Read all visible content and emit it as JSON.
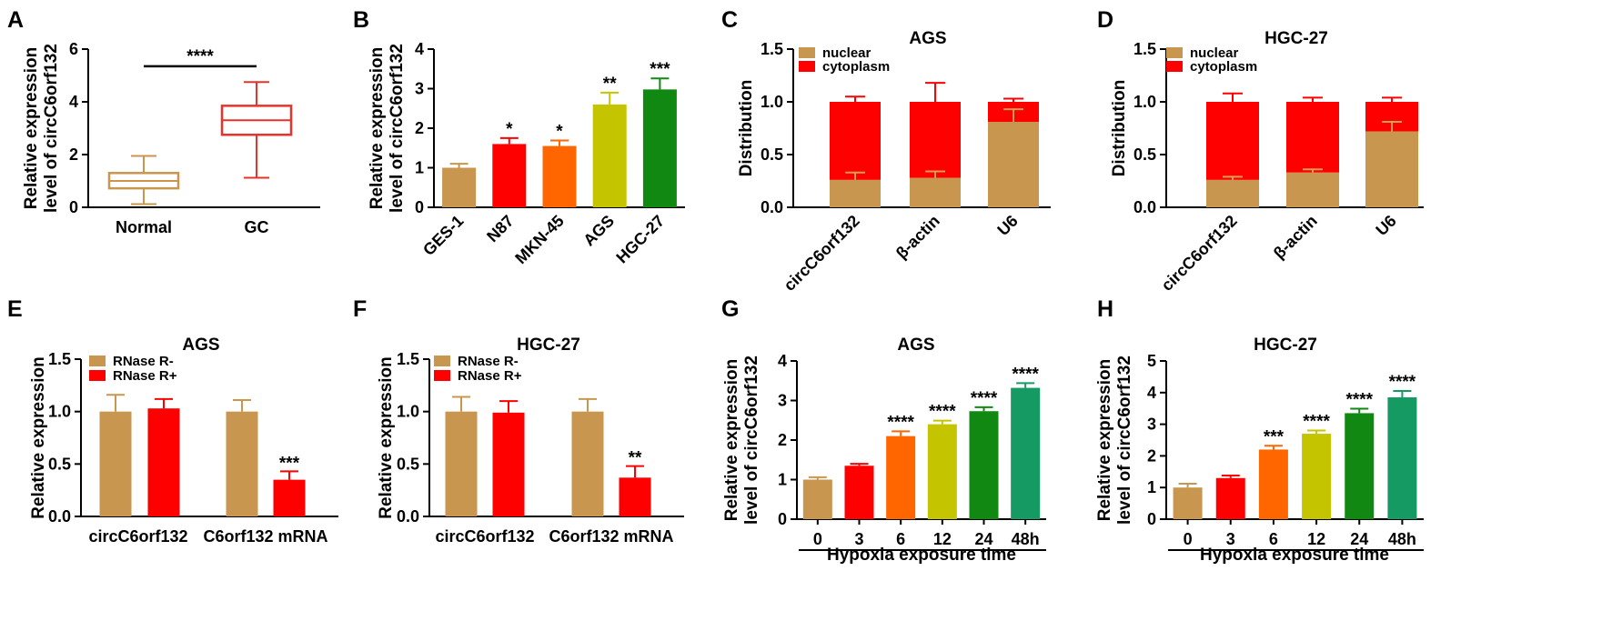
{
  "colors": {
    "tan": "#c8964f",
    "red": "#ff0000",
    "orange": "#ff6600",
    "olive": "#c4c400",
    "green": "#118811",
    "teal": "#159a63",
    "box_normal": "#c8964f",
    "box_gc": "#e8332a"
  },
  "chart_data": [
    {
      "panel": "A",
      "type": "box",
      "title": "",
      "ylabel": [
        "Relative expression",
        "level of circC6orf132"
      ],
      "ylim": [
        0,
        6
      ],
      "yticks": [
        0,
        2,
        4,
        6
      ],
      "ytick_labels": [
        "0",
        "2",
        "4",
        "6"
      ],
      "categories": [
        "Normal",
        "GC"
      ],
      "boxes": [
        {
          "name": "Normal",
          "min": 0.12,
          "q1": 0.72,
          "median": 1.0,
          "q3": 1.3,
          "max": 1.95,
          "color": "#c8964f"
        },
        {
          "name": "GC",
          "min": 1.12,
          "q1": 2.75,
          "median": 3.3,
          "q3": 3.85,
          "max": 4.75,
          "color": "#e8332a"
        }
      ],
      "bracket": {
        "label": "****",
        "value": 5.35
      }
    },
    {
      "panel": "B",
      "type": "bar",
      "title": "",
      "ylabel": [
        "Relative expression",
        "level of circC6orf132"
      ],
      "ylim": [
        0,
        4
      ],
      "yticks": [
        0,
        1,
        2,
        3,
        4
      ],
      "ytick_labels": [
        "0",
        "1",
        "2",
        "3",
        "4"
      ],
      "categories": [
        "GES-1",
        "N87",
        "MKN-45",
        "AGS",
        "HGC-27"
      ],
      "rotate_cats": true,
      "values": [
        1.0,
        1.6,
        1.55,
        2.6,
        2.98
      ],
      "errors": [
        0.1,
        0.15,
        0.14,
        0.3,
        0.28
      ],
      "colors": [
        "#c8964f",
        "#ff0000",
        "#ff6600",
        "#c4c400",
        "#118811"
      ],
      "sig": [
        "",
        "*",
        "*",
        "**",
        "***"
      ]
    },
    {
      "panel": "C",
      "type": "stacked_bar",
      "title": "AGS",
      "ylabel": [
        "Distribution"
      ],
      "ylim": [
        0,
        1.5
      ],
      "yticks": [
        0,
        0.5,
        1.0,
        1.5
      ],
      "ytick_labels": [
        "0.0",
        "0.5",
        "1.0",
        "1.5"
      ],
      "categories": [
        "circC6orf132",
        "β-actin",
        "U6"
      ],
      "rotate_cats": true,
      "series": [
        {
          "name": "nuclear",
          "values": [
            0.26,
            0.28,
            0.81
          ],
          "errors": [
            0.07,
            0.06,
            0.12
          ],
          "color": "#c8964f"
        },
        {
          "name": "cytoplasm",
          "values": [
            0.74,
            0.72,
            0.19
          ],
          "errors": [
            0.05,
            0.18,
            0.03
          ],
          "color": "#ff0000"
        }
      ]
    },
    {
      "panel": "D",
      "type": "stacked_bar",
      "title": "HGC-27",
      "ylabel": [
        "Distribution"
      ],
      "ylim": [
        0,
        1.5
      ],
      "yticks": [
        0,
        0.5,
        1.0,
        1.5
      ],
      "ytick_labels": [
        "0.0",
        "0.5",
        "1.0",
        "1.5"
      ],
      "categories": [
        "circC6orf132",
        "β-actin",
        "U6"
      ],
      "rotate_cats": true,
      "series": [
        {
          "name": "nuclear",
          "values": [
            0.26,
            0.33,
            0.72
          ],
          "errors": [
            0.03,
            0.03,
            0.09
          ],
          "color": "#c8964f"
        },
        {
          "name": "cytoplasm",
          "values": [
            0.74,
            0.67,
            0.28
          ],
          "errors": [
            0.08,
            0.04,
            0.04
          ],
          "color": "#ff0000"
        }
      ]
    },
    {
      "panel": "E",
      "type": "grouped_bar",
      "title": "AGS",
      "ylabel": [
        "Relative expression"
      ],
      "ylim": [
        0,
        1.5
      ],
      "yticks": [
        0,
        0.5,
        1.0,
        1.5
      ],
      "ytick_labels": [
        "0.0",
        "0.5",
        "1.0",
        "1.5"
      ],
      "categories": [
        "circC6orf132",
        "C6orf132 mRNA"
      ],
      "series": [
        {
          "name": "RNase R-",
          "values": [
            1.0,
            1.0
          ],
          "errors": [
            0.16,
            0.11
          ],
          "color": "#c8964f"
        },
        {
          "name": "RNase R+",
          "values": [
            1.03,
            0.35
          ],
          "errors": [
            0.09,
            0.08
          ],
          "color": "#ff0000"
        }
      ],
      "sig": [
        [
          "",
          ""
        ],
        [
          "",
          "***"
        ]
      ]
    },
    {
      "panel": "F",
      "type": "grouped_bar",
      "title": "HGC-27",
      "ylabel": [
        "Relative expression"
      ],
      "ylim": [
        0,
        1.5
      ],
      "yticks": [
        0,
        0.5,
        1.0,
        1.5
      ],
      "ytick_labels": [
        "0.0",
        "0.5",
        "1.0",
        "1.5"
      ],
      "categories": [
        "circC6orf132",
        "C6orf132 mRNA"
      ],
      "series": [
        {
          "name": "RNase R-",
          "values": [
            1.0,
            1.0
          ],
          "errors": [
            0.14,
            0.12
          ],
          "color": "#c8964f"
        },
        {
          "name": "RNase R+",
          "values": [
            0.99,
            0.37
          ],
          "errors": [
            0.11,
            0.11
          ],
          "color": "#ff0000"
        }
      ],
      "sig": [
        [
          "",
          ""
        ],
        [
          "",
          "**"
        ]
      ]
    },
    {
      "panel": "G",
      "type": "bar",
      "title": "AGS",
      "ylabel": [
        "Relative expression",
        "level of circC6orf132"
      ],
      "ylim": [
        0,
        4
      ],
      "yticks": [
        0,
        1,
        2,
        3,
        4
      ],
      "ytick_labels": [
        "0",
        "1",
        "2",
        "3",
        "4"
      ],
      "categories": [
        "0",
        "3",
        "6",
        "12",
        "24",
        "48h"
      ],
      "xlabel": "Hypoxia exposure time",
      "values": [
        1.0,
        1.35,
        2.1,
        2.4,
        2.73,
        3.32
      ],
      "errors": [
        0.06,
        0.05,
        0.12,
        0.09,
        0.1,
        0.12
      ],
      "colors": [
        "#c8964f",
        "#ff0000",
        "#ff6600",
        "#c4c400",
        "#118811",
        "#159a63"
      ],
      "sig": [
        "",
        "",
        "****",
        "****",
        "****",
        "****"
      ]
    },
    {
      "panel": "H",
      "type": "bar",
      "title": "HGC-27",
      "ylabel": [
        "Relative expression",
        "level of circC6orf132"
      ],
      "ylim": [
        0,
        5
      ],
      "yticks": [
        0,
        1,
        2,
        3,
        4,
        5
      ],
      "ytick_labels": [
        "0",
        "1",
        "2",
        "3",
        "4",
        "5"
      ],
      "categories": [
        "0",
        "3",
        "6",
        "12",
        "24",
        "48h"
      ],
      "xlabel": "Hypoxia exposure time",
      "values": [
        1.0,
        1.3,
        2.2,
        2.7,
        3.35,
        3.85
      ],
      "errors": [
        0.12,
        0.08,
        0.12,
        0.1,
        0.14,
        0.2
      ],
      "colors": [
        "#c8964f",
        "#ff0000",
        "#ff6600",
        "#c4c400",
        "#118811",
        "#159a63"
      ],
      "sig": [
        "",
        "",
        "***",
        "****",
        "****",
        "****"
      ]
    }
  ]
}
